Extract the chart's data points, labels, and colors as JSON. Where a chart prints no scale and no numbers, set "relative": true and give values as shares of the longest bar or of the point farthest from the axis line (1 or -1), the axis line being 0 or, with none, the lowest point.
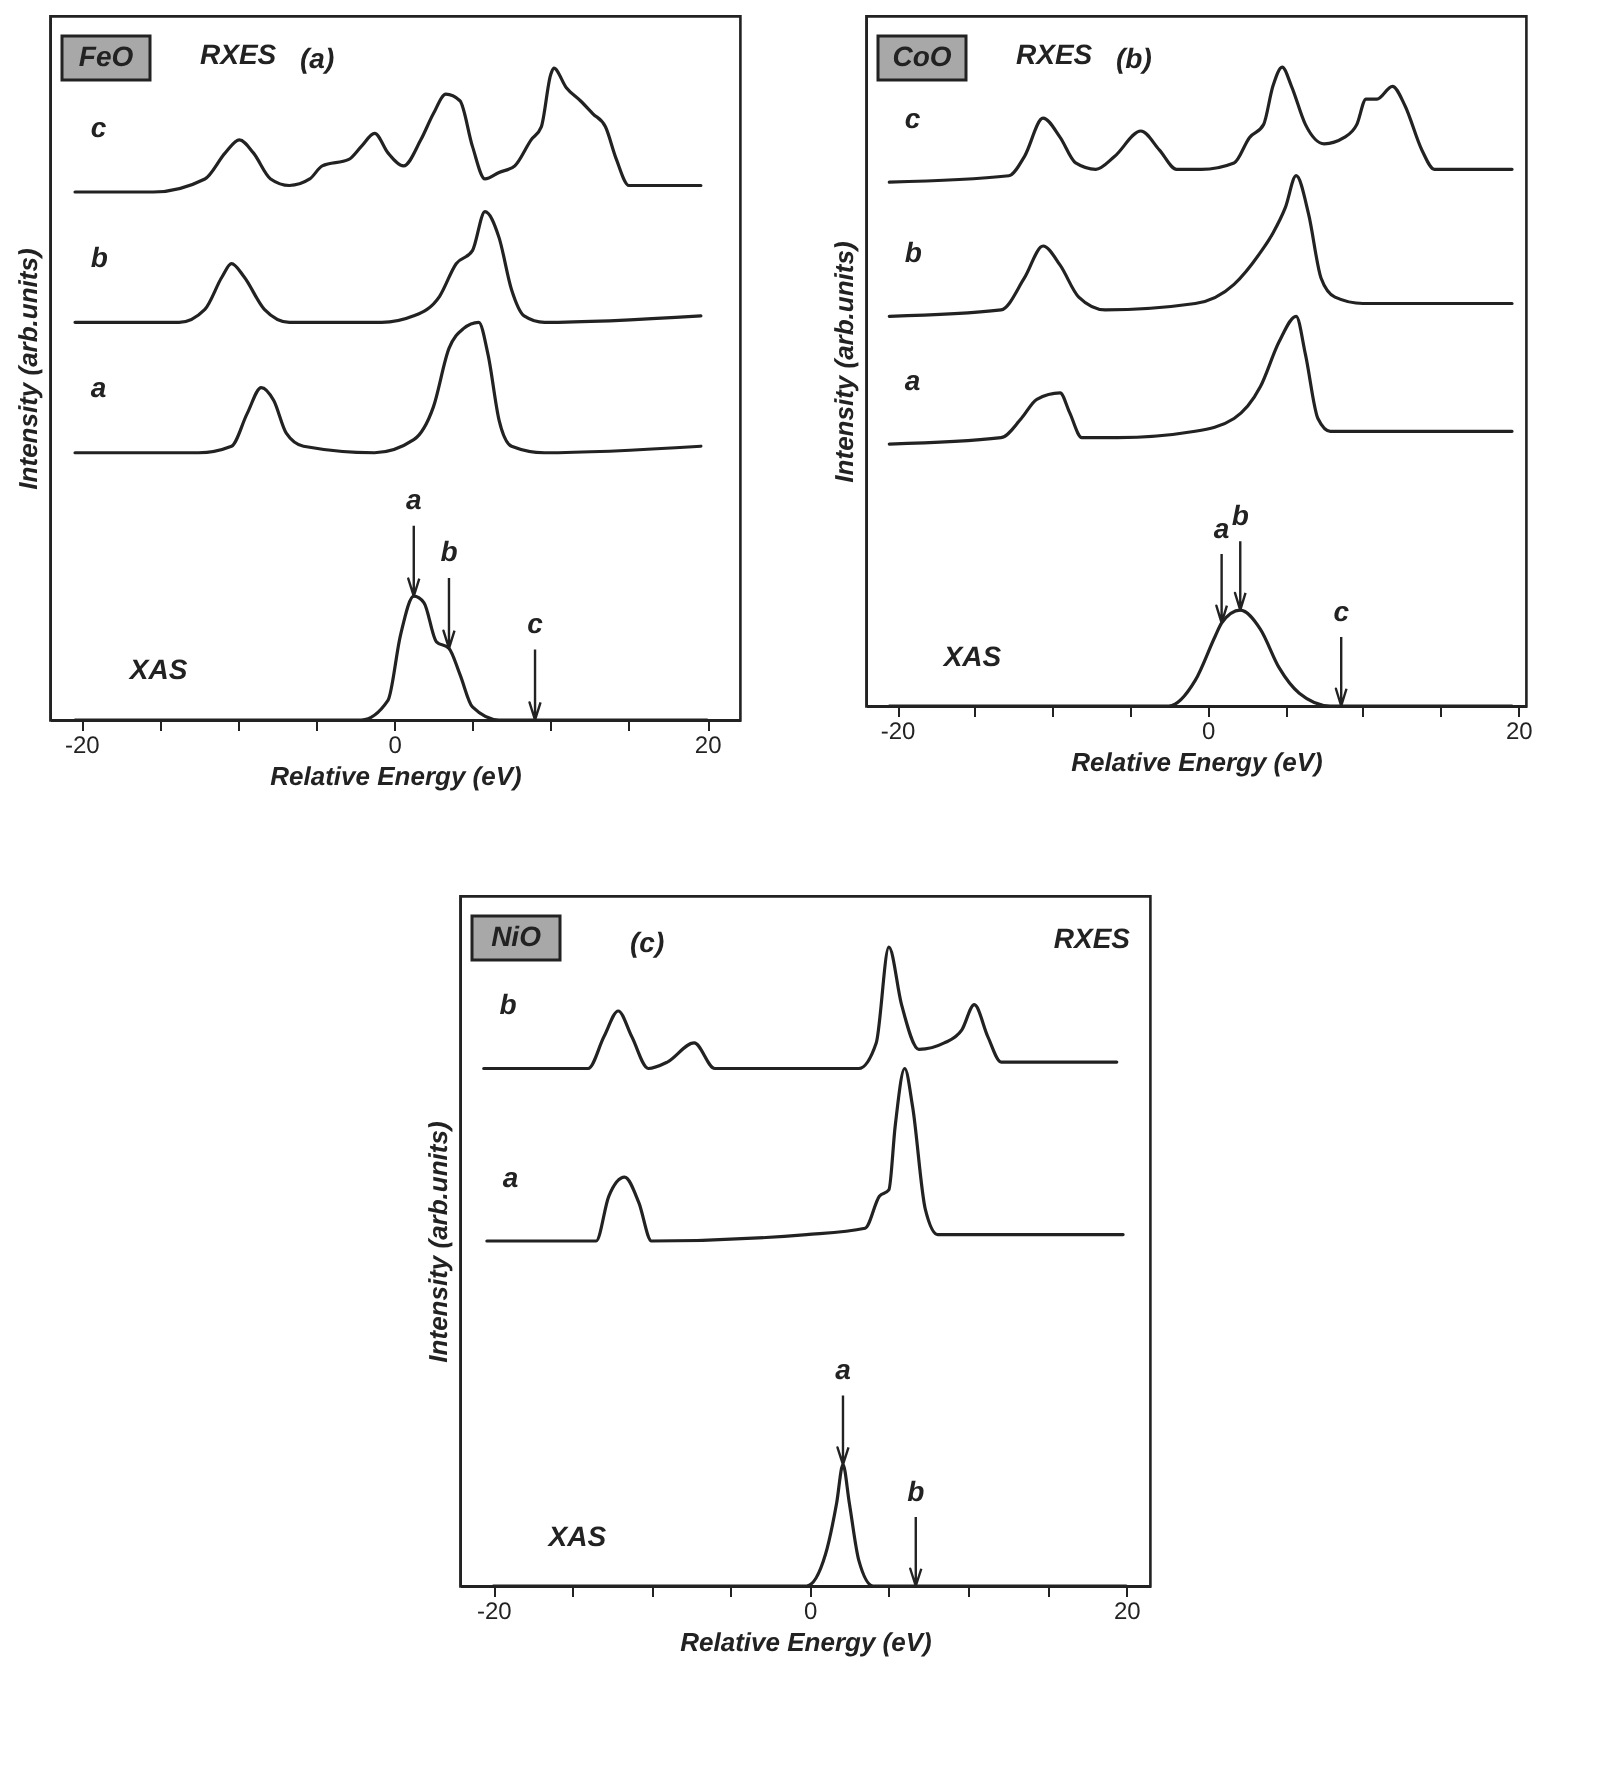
{
  "chart_data": [
    {
      "type": "line",
      "title": "FeO",
      "subtitle": "(a)",
      "annotations": [
        "RXES",
        {
          "text": "a",
          "x": 1.25,
          "y": 0.19
        },
        {
          "text": "b",
          "x": 3.5,
          "y": 0.11
        },
        {
          "text": "c",
          "x": 9.0,
          "y": 0
        }
      ],
      "xlabel": "Relative Energy (eV)",
      "ylabel": "Intensity (arb.units)",
      "relative": true,
      "xlim": [
        -22,
        22.1
      ],
      "xticks": [
        -20,
        {
          "value": -15,
          "label": null
        },
        {
          "value": -10,
          "label": null
        },
        {
          "value": -5,
          "label": null
        },
        0,
        {
          "value": 5,
          "label": null
        },
        {
          "value": 10,
          "label": null
        },
        {
          "value": 15,
          "label": null
        },
        20
      ],
      "series": [
        {
          "name": "c",
          "color": "#222222",
          "x": [
            -20.4,
            -15.4,
            -12.1,
            -10.8,
            -9.9,
            -9.0,
            -7.9,
            -6.7,
            -5.4,
            -4.6,
            -2.9,
            -2.1,
            -1.25,
            -0.4,
            0.6,
            1.7,
            2.5,
            3.3,
            4.2,
            5.0,
            5.8,
            6.7,
            7.7,
            8.75,
            9.4,
            10.0,
            10.2,
            11.0,
            11.9,
            12.7,
            13.5,
            14.2,
            15.0,
            16.25,
            19.6
          ],
          "values": [
            0.81,
            0.81,
            0.83,
            0.87,
            0.89,
            0.87,
            0.83,
            0.82,
            0.83,
            0.85,
            0.86,
            0.88,
            0.9,
            0.87,
            0.85,
            0.89,
            0.93,
            0.96,
            0.95,
            0.88,
            0.83,
            0.84,
            0.85,
            0.89,
            0.91,
            0.99,
            1.0,
            0.97,
            0.95,
            0.93,
            0.91,
            0.86,
            0.82,
            0.82,
            0.82
          ]
        },
        {
          "name": "b",
          "color": "#222222",
          "x": [
            -20.4,
            -13.75,
            -12.1,
            -11.0,
            -10.4,
            -9.6,
            -8.3,
            -6.7,
            -0.8,
            1.25,
            2.9,
            3.96,
            5.0,
            5.8,
            6.7,
            7.5,
            8.3,
            9.6,
            19.6
          ],
          "values": [
            0.61,
            0.61,
            0.63,
            0.68,
            0.7,
            0.68,
            0.63,
            0.61,
            0.61,
            0.62,
            0.65,
            0.7,
            0.72,
            0.78,
            0.74,
            0.66,
            0.62,
            0.61,
            0.62
          ]
        },
        {
          "name": "a",
          "color": "#222222",
          "x": [
            -20.4,
            -12.5,
            -10.4,
            -9.4,
            -8.5,
            -7.7,
            -6.9,
            -5.8,
            -1.25,
            1.25,
            2.5,
            3.5,
            4.4,
            5.4,
            6.0,
            6.7,
            7.5,
            9.6,
            19.6
          ],
          "values": [
            0.41,
            0.41,
            0.42,
            0.47,
            0.51,
            0.49,
            0.44,
            0.42,
            0.41,
            0.43,
            0.48,
            0.57,
            0.6,
            0.61,
            0.56,
            0.46,
            0.42,
            0.41,
            0.42
          ]
        },
        {
          "name": "XAS",
          "color": "#222222",
          "x": [
            -20.4,
            -2.1,
            -0.4,
            0.4,
            1.25,
            1.9,
            2.7,
            3.5,
            4.2,
            5.0,
            6.7,
            9.0,
            20
          ],
          "values": [
            0,
            0,
            0.03,
            0.13,
            0.19,
            0.18,
            0.12,
            0.11,
            0.07,
            0.02,
            0,
            0,
            0
          ]
        }
      ]
    },
    {
      "type": "line",
      "title": "CoO",
      "subtitle": "(b)",
      "annotations": [
        "RXES",
        {
          "text": "a",
          "x": 0.9,
          "y": 0.13
        },
        {
          "text": "b",
          "x": 2.1,
          "y": 0.15
        },
        {
          "text": "c",
          "x": 8.6,
          "y": 0
        }
      ],
      "xlabel": "Relative Energy (eV)",
      "ylabel": "Intensity (arb.units)",
      "relative": true,
      "xlim": [
        -22,
        20.5
      ],
      "xticks": [
        -20,
        {
          "value": -15,
          "label": null
        },
        {
          "value": -10,
          "label": null
        },
        {
          "value": -5,
          "label": null
        },
        0,
        {
          "value": 5,
          "label": null
        },
        {
          "value": 10,
          "label": null
        },
        {
          "value": 15,
          "label": null
        },
        20
      ],
      "series": [
        {
          "name": "c",
          "color": "#222222",
          "x": [
            -20.5,
            -12.8,
            -11.8,
            -10.6,
            -9.5,
            -8.5,
            -7.2,
            -6.0,
            -4.3,
            -3.1,
            -2.0,
            -0.4,
            1.7,
            2.7,
            3.6,
            4.2,
            4.8,
            5.4,
            6.3,
            7.5,
            8.8,
            9.6,
            10.2,
            10.9,
            11.9,
            12.7,
            13.8,
            14.6,
            19.6
          ],
          "values": [
            0.82,
            0.83,
            0.86,
            0.92,
            0.89,
            0.85,
            0.84,
            0.86,
            0.9,
            0.87,
            0.84,
            0.84,
            0.85,
            0.89,
            0.91,
            0.97,
            1.0,
            0.97,
            0.91,
            0.88,
            0.89,
            0.91,
            0.95,
            0.95,
            0.97,
            0.94,
            0.87,
            0.84,
            0.84
          ]
        },
        {
          "name": "b",
          "color": "#222222",
          "x": [
            -20.5,
            -13.3,
            -11.8,
            -10.6,
            -9.5,
            -8.3,
            -6.6,
            -0.8,
            1.7,
            3.4,
            4.2,
            5.0,
            5.7,
            6.5,
            7.3,
            8.2,
            10.0,
            19.6
          ],
          "values": [
            0.61,
            0.62,
            0.67,
            0.72,
            0.69,
            0.64,
            0.62,
            0.63,
            0.66,
            0.71,
            0.74,
            0.78,
            0.83,
            0.77,
            0.67,
            0.64,
            0.63,
            0.63
          ]
        },
        {
          "name": "a",
          "color": "#222222",
          "x": [
            -20.5,
            -13.3,
            -12.0,
            -11.0,
            -9.5,
            -8.9,
            -8.1,
            -5.8,
            -0.8,
            1.7,
            3.4,
            4.6,
            5.7,
            6.3,
            7.1,
            7.9,
            19.6
          ],
          "values": [
            0.41,
            0.42,
            0.45,
            0.48,
            0.49,
            0.46,
            0.42,
            0.42,
            0.43,
            0.45,
            0.5,
            0.57,
            0.61,
            0.55,
            0.45,
            0.43,
            0.43
          ]
        },
        {
          "name": "XAS",
          "color": "#222222",
          "x": [
            -20.5,
            -2.5,
            -0.8,
            0.5,
            0.9,
            2.1,
            3.4,
            4.6,
            5.9,
            7.9,
            8.6,
            19.6
          ],
          "values": [
            0,
            0,
            0.04,
            0.11,
            0.13,
            0.15,
            0.12,
            0.06,
            0.02,
            0,
            0,
            0
          ]
        }
      ]
    },
    {
      "type": "line",
      "title": "NiO",
      "subtitle": "(c)",
      "annotations": [
        "RXES",
        {
          "text": "a",
          "x": 2.1,
          "y": 0.19
        },
        {
          "text": "b",
          "x": 6.7,
          "y": 0
        }
      ],
      "xlabel": "Relative Energy (eV)",
      "ylabel": "Intensity (arb.units)",
      "relative": true,
      "xlim": [
        -22.1,
        21.5
      ],
      "xticks": [
        -20,
        {
          "value": -15,
          "label": null
        },
        {
          "value": -10,
          "label": null
        },
        {
          "value": -5,
          "label": null
        },
        0,
        {
          "value": 5,
          "label": null
        },
        {
          "value": 10,
          "label": null
        },
        {
          "value": 15,
          "label": null
        },
        20
      ],
      "series": [
        {
          "name": "b",
          "color": "#222222",
          "x": [
            -20.6,
            -14.0,
            -13.0,
            -12.1,
            -11.25,
            -10.2,
            -9.0,
            -7.3,
            -6.0,
            -5.2,
            3.1,
            4.2,
            5.0,
            5.8,
            6.9,
            8.5,
            9.6,
            10.4,
            11.25,
            12.1,
            19.4
          ],
          "values": [
            0.81,
            0.81,
            0.86,
            0.9,
            0.86,
            0.81,
            0.82,
            0.85,
            0.81,
            0.81,
            0.81,
            0.85,
            1.0,
            0.91,
            0.84,
            0.85,
            0.87,
            0.91,
            0.86,
            0.82,
            0.82
          ]
        },
        {
          "name": "a",
          "color": "#222222",
          "x": [
            -20.4,
            -13.5,
            -12.7,
            -11.7,
            -10.8,
            -10.0,
            -0.2,
            3.5,
            4.4,
            5.0,
            5.4,
            6.0,
            6.5,
            7.3,
            8.1,
            19.8
          ],
          "values": [
            0.54,
            0.54,
            0.61,
            0.64,
            0.6,
            0.54,
            0.55,
            0.56,
            0.61,
            0.62,
            0.72,
            0.81,
            0.75,
            0.59,
            0.55,
            0.55
          ]
        },
        {
          "name": "XAS",
          "color": "#222222",
          "x": [
            -20,
            -0.2,
            1.0,
            1.7,
            2.1,
            2.5,
            3.1,
            4.0,
            6.7,
            20
          ],
          "values": [
            0,
            0,
            0.05,
            0.13,
            0.19,
            0.13,
            0.04,
            0,
            0,
            0
          ]
        }
      ]
    }
  ]
}
